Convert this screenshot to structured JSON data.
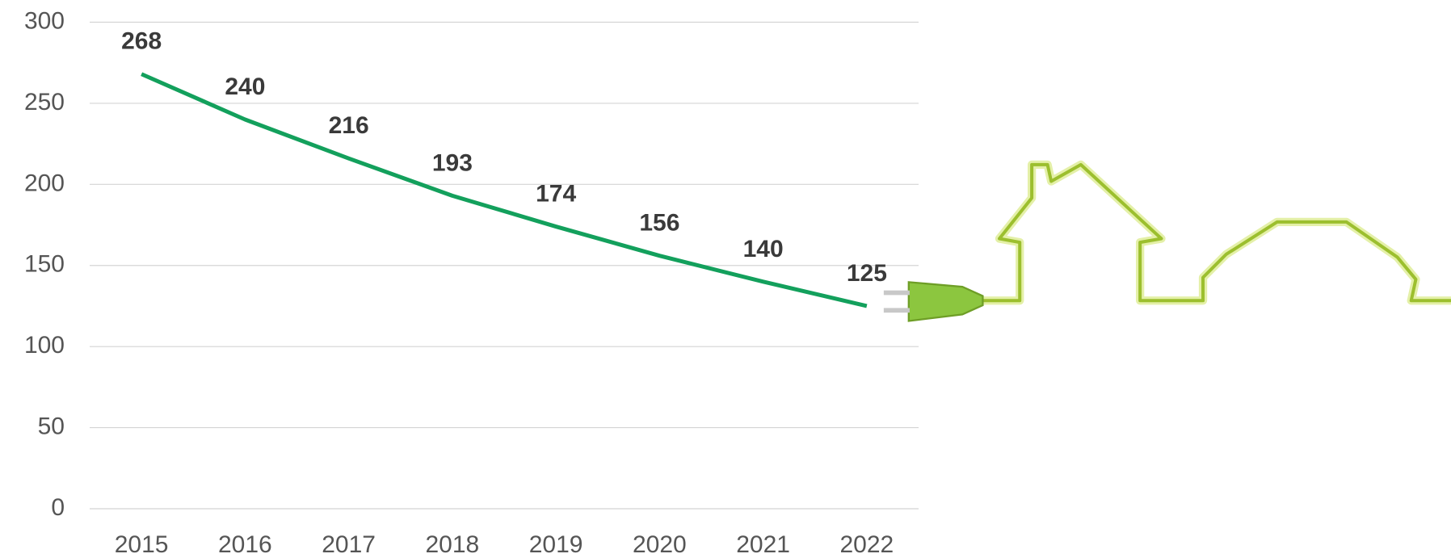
{
  "chart_data": {
    "type": "line",
    "categories": [
      "2015",
      "2016",
      "2017",
      "2018",
      "2019",
      "2020",
      "2021",
      "2022"
    ],
    "values": [
      268,
      240,
      216,
      193,
      174,
      156,
      140,
      125
    ],
    "color": "#13a05c",
    "ylim": [
      0,
      300
    ],
    "yticks": [
      0,
      50,
      100,
      150,
      200,
      250,
      300
    ],
    "grid": true
  }
}
